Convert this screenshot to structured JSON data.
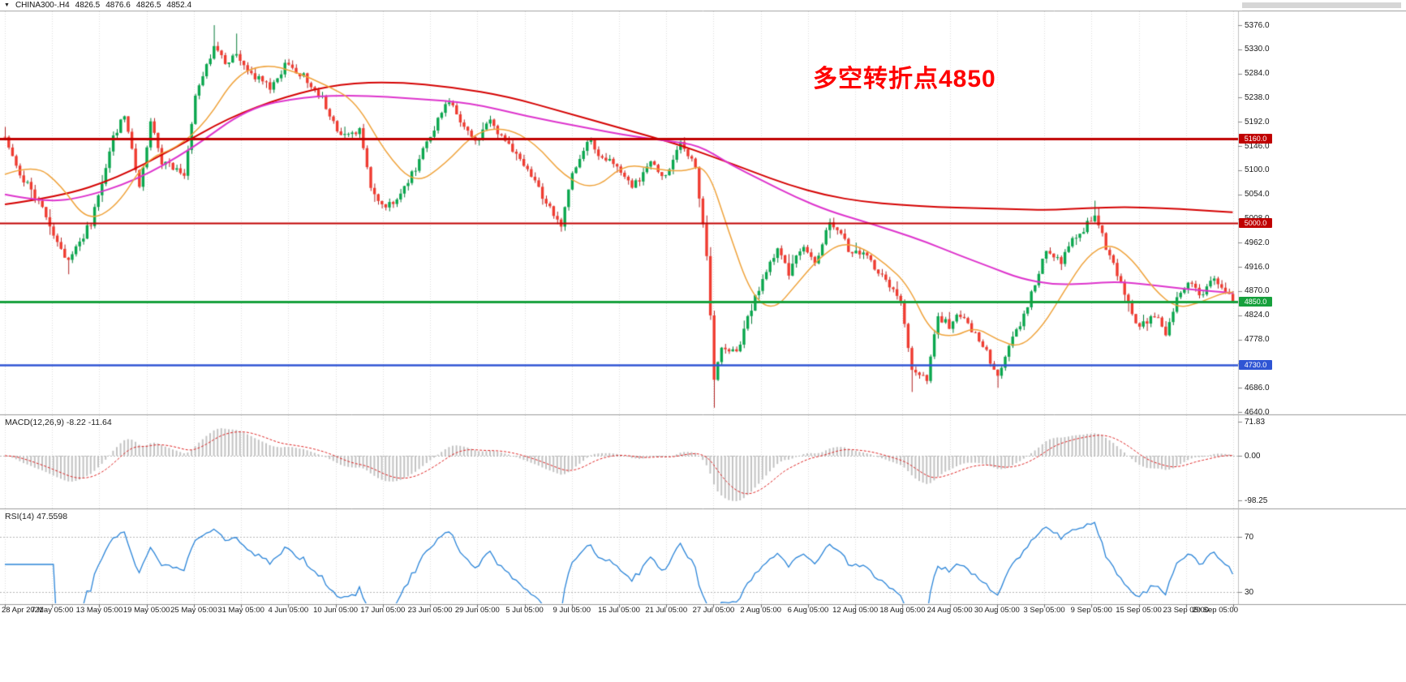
{
  "header": {
    "icon": "▼",
    "symbol": "CHINA300-.H4",
    "open": "4826.5",
    "high": "4876.6",
    "low": "4826.5",
    "close": "4852.4"
  },
  "indicators": {
    "macd": {
      "label": "MACD(12,26,9) -8.22 -11.64",
      "axis": [
        "71.83",
        "0.00",
        "-98.25"
      ]
    },
    "rsi": {
      "label": "RSI(14) 47.5598",
      "axis": [
        "70",
        "30"
      ]
    }
  },
  "chart_data": {
    "type": "candlestick",
    "symbol": "CHINA300-.H4",
    "timeframe": "H4",
    "title": "CHINA300-.H4 4826.5 4876.6 4826.5 4852.4",
    "annotation": {
      "text": "多空转折点4850",
      "color": "#fe0000"
    },
    "price_axis": {
      "min": 4640,
      "max": 5376,
      "tick_step": 46,
      "ticks": [
        "5376.0",
        "5330.0",
        "5284.0",
        "5238.0",
        "5192.0",
        "5146.0",
        "5100.0",
        "5054.0",
        "5008.0",
        "4962.0",
        "4916.0",
        "4870.0",
        "4824.0",
        "4778.0",
        "4732.0",
        "4686.0",
        "4640.0"
      ]
    },
    "time_ticks": [
      "28 Apr 2021",
      "7 May 05:00",
      "13 May 05:00",
      "19 May 05:00",
      "25 May 05:00",
      "31 May 05:00",
      "4 Jun 05:00",
      "10 Jun 05:00",
      "17 Jun 05:00",
      "23 Jun 05:00",
      "29 Jun 05:00",
      "5 Jul 05:00",
      "9 Jul 05:00",
      "15 Jul 05:00",
      "21 Jul 05:00",
      "27 Jul 05:00",
      "2 Aug 05:00",
      "6 Aug 05:00",
      "12 Aug 05:00",
      "18 Aug 05:00",
      "24 Aug 05:00",
      "30 Aug 05:00",
      "3 Sep 05:00",
      "9 Sep 05:00",
      "15 Sep 05:00",
      "23 Sep 05:00",
      "29 Sep 05:00"
    ],
    "levels": [
      {
        "price": 5160,
        "label": "5160.0",
        "color": "#c00000",
        "width": 3
      },
      {
        "price": 5000,
        "label": "5000.0",
        "color": "#c00000",
        "width": 2
      },
      {
        "price": 4850,
        "label": "4850.0",
        "color": "#16a03c",
        "width": 3
      },
      {
        "price": 4730,
        "label": "4730.0",
        "color": "#2f55d4",
        "width": 2.5
      }
    ],
    "bars": 330,
    "seed": 20210929,
    "noise": 7,
    "wick": 9,
    "price_waypoints": [
      [
        0,
        5160
      ],
      [
        3,
        5105
      ],
      [
        9,
        5040
      ],
      [
        14,
        4960
      ],
      [
        17,
        4930
      ],
      [
        23,
        5000
      ],
      [
        29,
        5160
      ],
      [
        32,
        5205
      ],
      [
        36,
        5065
      ],
      [
        39,
        5190
      ],
      [
        42,
        5115
      ],
      [
        48,
        5095
      ],
      [
        51,
        5235
      ],
      [
        56,
        5340
      ],
      [
        59,
        5300
      ],
      [
        62,
        5325
      ],
      [
        66,
        5285
      ],
      [
        71,
        5255
      ],
      [
        75,
        5300
      ],
      [
        80,
        5280
      ],
      [
        85,
        5235
      ],
      [
        90,
        5165
      ],
      [
        95,
        5175
      ],
      [
        98,
        5065
      ],
      [
        102,
        5030
      ],
      [
        105,
        5045
      ],
      [
        110,
        5105
      ],
      [
        114,
        5165
      ],
      [
        119,
        5235
      ],
      [
        122,
        5185
      ],
      [
        126,
        5155
      ],
      [
        130,
        5195
      ],
      [
        135,
        5145
      ],
      [
        139,
        5115
      ],
      [
        144,
        5050
      ],
      [
        149,
        4995
      ],
      [
        152,
        5090
      ],
      [
        156,
        5160
      ],
      [
        160,
        5125
      ],
      [
        164,
        5105
      ],
      [
        168,
        5065
      ],
      [
        173,
        5110
      ],
      [
        177,
        5085
      ],
      [
        181,
        5150
      ],
      [
        185,
        5105
      ],
      [
        188,
        4940
      ],
      [
        190,
        4705
      ],
      [
        192,
        4760
      ],
      [
        196,
        4750
      ],
      [
        199,
        4820
      ],
      [
        202,
        4875
      ],
      [
        207,
        4950
      ],
      [
        210,
        4905
      ],
      [
        214,
        4960
      ],
      [
        217,
        4925
      ],
      [
        221,
        5000
      ],
      [
        224,
        4980
      ],
      [
        227,
        4935
      ],
      [
        230,
        4950
      ],
      [
        234,
        4905
      ],
      [
        237,
        4875
      ],
      [
        240,
        4855
      ],
      [
        243,
        4715
      ],
      [
        247,
        4705
      ],
      [
        250,
        4820
      ],
      [
        253,
        4805
      ],
      [
        256,
        4825
      ],
      [
        260,
        4785
      ],
      [
        263,
        4755
      ],
      [
        266,
        4705
      ],
      [
        270,
        4780
      ],
      [
        273,
        4825
      ],
      [
        276,
        4885
      ],
      [
        279,
        4945
      ],
      [
        283,
        4925
      ],
      [
        286,
        4965
      ],
      [
        289,
        4985
      ],
      [
        292,
        5020
      ],
      [
        295,
        4950
      ],
      [
        298,
        4905
      ],
      [
        301,
        4845
      ],
      [
        304,
        4800
      ],
      [
        308,
        4825
      ],
      [
        311,
        4792
      ],
      [
        314,
        4855
      ],
      [
        317,
        4885
      ],
      [
        320,
        4862
      ],
      [
        324,
        4892
      ],
      [
        326,
        4872
      ],
      [
        329,
        4852
      ]
    ],
    "wick_overrides": [
      [
        17,
        "low",
        4902
      ],
      [
        56,
        "high",
        5376
      ],
      [
        62,
        "high",
        5360
      ],
      [
        149,
        "low",
        4983
      ],
      [
        190,
        "low",
        4648
      ],
      [
        243,
        "low",
        4678
      ],
      [
        266,
        "low",
        4686
      ],
      [
        292,
        "high",
        5042
      ]
    ],
    "moving_averages": [
      {
        "name": "ma-slow",
        "color": "#d40000",
        "width": 2,
        "points": [
          [
            0,
            5035
          ],
          [
            15,
            5050
          ],
          [
            30,
            5085
          ],
          [
            45,
            5140
          ],
          [
            60,
            5200
          ],
          [
            75,
            5240
          ],
          [
            90,
            5265
          ],
          [
            105,
            5268
          ],
          [
            120,
            5258
          ],
          [
            135,
            5240
          ],
          [
            150,
            5210
          ],
          [
            165,
            5180
          ],
          [
            180,
            5150
          ],
          [
            190,
            5125
          ],
          [
            200,
            5098
          ],
          [
            210,
            5072
          ],
          [
            220,
            5052
          ],
          [
            230,
            5040
          ],
          [
            240,
            5034
          ],
          [
            250,
            5030
          ],
          [
            260,
            5028
          ],
          [
            270,
            5026
          ],
          [
            280,
            5024
          ],
          [
            290,
            5028
          ],
          [
            300,
            5030
          ],
          [
            310,
            5028
          ],
          [
            320,
            5024
          ],
          [
            329,
            5020
          ]
        ]
      },
      {
        "name": "ma-medium",
        "color": "#dd33cc",
        "width": 2,
        "points": [
          [
            0,
            5054
          ],
          [
            10,
            5040
          ],
          [
            20,
            5046
          ],
          [
            35,
            5080
          ],
          [
            50,
            5140
          ],
          [
            65,
            5218
          ],
          [
            80,
            5240
          ],
          [
            95,
            5243
          ],
          [
            110,
            5236
          ],
          [
            125,
            5228
          ],
          [
            140,
            5202
          ],
          [
            155,
            5182
          ],
          [
            165,
            5168
          ],
          [
            177,
            5156
          ],
          [
            186,
            5148
          ],
          [
            194,
            5112
          ],
          [
            203,
            5080
          ],
          [
            212,
            5048
          ],
          [
            221,
            5022
          ],
          [
            229,
            5005
          ],
          [
            238,
            4985
          ],
          [
            247,
            4963
          ],
          [
            255,
            4940
          ],
          [
            264,
            4916
          ],
          [
            272,
            4894
          ],
          [
            281,
            4882
          ],
          [
            290,
            4884
          ],
          [
            298,
            4888
          ],
          [
            307,
            4882
          ],
          [
            316,
            4874
          ],
          [
            325,
            4869
          ],
          [
            329,
            4866
          ]
        ]
      },
      {
        "name": "ma-fast",
        "color": "#efa23a",
        "width": 1.5,
        "points": [
          [
            0,
            5092
          ],
          [
            8,
            5112
          ],
          [
            15,
            5072
          ],
          [
            22,
            5002
          ],
          [
            30,
            5030
          ],
          [
            38,
            5122
          ],
          [
            46,
            5142
          ],
          [
            54,
            5192
          ],
          [
            62,
            5282
          ],
          [
            70,
            5302
          ],
          [
            78,
            5287
          ],
          [
            86,
            5262
          ],
          [
            94,
            5232
          ],
          [
            102,
            5132
          ],
          [
            110,
            5072
          ],
          [
            118,
            5112
          ],
          [
            126,
            5172
          ],
          [
            134,
            5182
          ],
          [
            142,
            5152
          ],
          [
            150,
            5087
          ],
          [
            158,
            5062
          ],
          [
            166,
            5112
          ],
          [
            174,
            5102
          ],
          [
            182,
            5097
          ],
          [
            188,
            5112
          ],
          [
            194,
            4982
          ],
          [
            200,
            4862
          ],
          [
            206,
            4832
          ],
          [
            212,
            4882
          ],
          [
            218,
            4932
          ],
          [
            224,
            4962
          ],
          [
            230,
            4952
          ],
          [
            236,
            4922
          ],
          [
            242,
            4882
          ],
          [
            248,
            4792
          ],
          [
            254,
            4782
          ],
          [
            260,
            4802
          ],
          [
            266,
            4777
          ],
          [
            272,
            4762
          ],
          [
            278,
            4802
          ],
          [
            284,
            4872
          ],
          [
            290,
            4937
          ],
          [
            296,
            4962
          ],
          [
            302,
            4932
          ],
          [
            308,
            4872
          ],
          [
            314,
            4837
          ],
          [
            320,
            4847
          ],
          [
            326,
            4866
          ],
          [
            329,
            4868
          ]
        ]
      }
    ],
    "macd": {
      "fast": 12,
      "slow": 26,
      "signal": 9,
      "range": [
        -98.25,
        71.83
      ],
      "current": [
        -8.22,
        -11.64
      ]
    },
    "rsi": {
      "period": 14,
      "levels": [
        70,
        30
      ],
      "current": 47.5598
    },
    "colors": {
      "up": "#0aa74e",
      "up_border": "#067a38",
      "down": "#ef3b30",
      "down_border": "#b02020",
      "grid": "#dcdcdc",
      "divider": "#9a9a9a",
      "macd_hist": "#c2c2c2",
      "macd_signal": "#dd2222",
      "rsi_line": "#2a84d8",
      "axis_text": "#1a1a1a"
    }
  }
}
